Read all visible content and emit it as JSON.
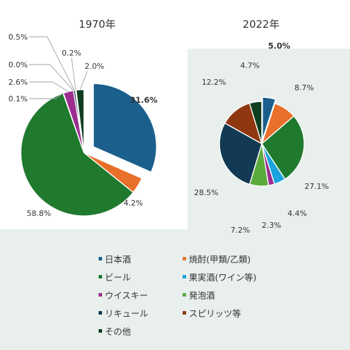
{
  "chart_data": [
    {
      "type": "pie",
      "title": "1970年",
      "series": [
        {
          "category": "日本酒",
          "value": 31.6,
          "label": "31.6%"
        },
        {
          "category": "焼酎(甲類/乙類)",
          "value": 4.2,
          "label": "4.2%"
        },
        {
          "category": "ビール",
          "value": 58.8,
          "label": "58.8%"
        },
        {
          "category": "果実酒(ワイン等)",
          "value": 0.1,
          "label": "0.1%"
        },
        {
          "category": "ウイスキー",
          "value": 2.6,
          "label": "2.6%"
        },
        {
          "category": "発泡酒",
          "value": 0.0,
          "label": "0.0%"
        },
        {
          "category": "リキュール",
          "value": 0.5,
          "label": "0.5%"
        },
        {
          "category": "スピリッツ等",
          "value": 0.2,
          "label": "0.2%"
        },
        {
          "category": "その他",
          "value": 2.0,
          "label": "2.0%"
        }
      ],
      "highlighted_category": "日本酒"
    },
    {
      "type": "pie",
      "title": "2022年",
      "series": [
        {
          "category": "日本酒",
          "value": 5.0,
          "label": "5.0%"
        },
        {
          "category": "焼酎(甲類/乙類)",
          "value": 8.7,
          "label": "8.7%"
        },
        {
          "category": "ビール",
          "value": 27.1,
          "label": "27.1%"
        },
        {
          "category": "果実酒(ワイン等)",
          "value": 4.4,
          "label": "4.4%"
        },
        {
          "category": "ウイスキー",
          "value": 2.3,
          "label": "2.3%"
        },
        {
          "category": "発泡酒",
          "value": 7.2,
          "label": "7.2%"
        },
        {
          "category": "リキュール",
          "value": 28.5,
          "label": "28.5%"
        },
        {
          "category": "スピリッツ等",
          "value": 12.2,
          "label": "12.2%"
        },
        {
          "category": "その他",
          "value": 4.7,
          "label": "4.7%"
        }
      ],
      "highlighted_category": "日本酒"
    }
  ],
  "legend": {
    "placement": "bottom",
    "items": [
      {
        "label": "日本酒",
        "color": "#1b5f8c"
      },
      {
        "label": "焼酎(甲類/乙類)",
        "color": "#e8702a"
      },
      {
        "label": "ビール",
        "color": "#1f7a2e"
      },
      {
        "label": "果実酒(ワイン等)",
        "color": "#1aa3dc"
      },
      {
        "label": "ウイスキー",
        "color": "#9b2d8f"
      },
      {
        "label": "発泡酒",
        "color": "#5aaa3c"
      },
      {
        "label": "リキュール",
        "color": "#123a54"
      },
      {
        "label": "スピリッツ等",
        "color": "#8f3710"
      },
      {
        "label": "その他",
        "color": "#0f3d1f"
      }
    ]
  },
  "colors": {
    "panel_background": "#e8efec",
    "highlight_label": "#1b4f7a"
  }
}
